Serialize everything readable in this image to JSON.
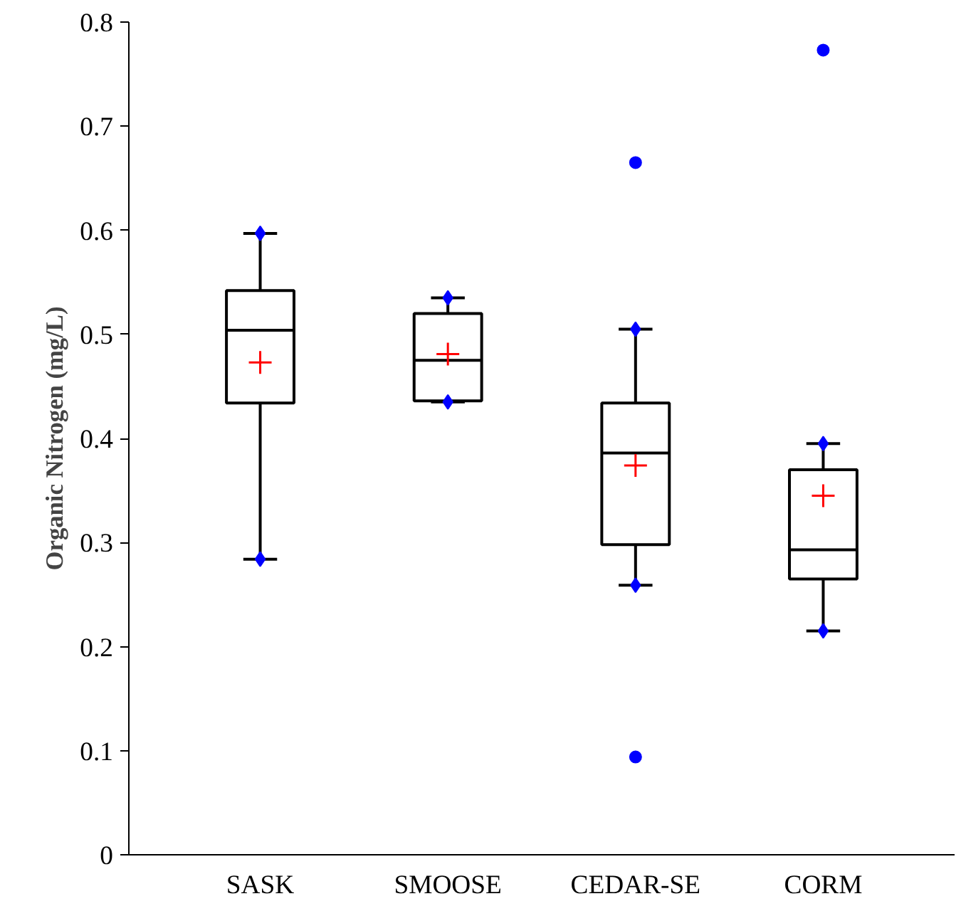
{
  "chart_data": {
    "type": "box",
    "ylabel": "Organic Nitrogen (mg/L)",
    "categories": [
      "SASK",
      "SMOOSE",
      "CEDAR-SE",
      "CORM"
    ],
    "boxes": [
      {
        "low": 0.284,
        "q1": 0.434,
        "median": 0.504,
        "q3": 0.542,
        "high": 0.597,
        "mean": 0.473
      },
      {
        "low": 0.435,
        "q1": 0.436,
        "median": 0.475,
        "q3": 0.52,
        "high": 0.535,
        "mean": 0.481
      },
      {
        "low": 0.259,
        "q1": 0.298,
        "median": 0.386,
        "q3": 0.434,
        "high": 0.505,
        "mean": 0.374,
        "outliers": [
          0.665,
          0.094
        ]
      },
      {
        "low": 0.215,
        "q1": 0.265,
        "median": 0.293,
        "q3": 0.37,
        "high": 0.395,
        "mean": 0.345,
        "outliers": [
          0.773
        ]
      }
    ],
    "series": [
      {
        "type": "scatter",
        "marker": "diamond",
        "color": "#0000ff",
        "x": [
          "SASK",
          "SASK",
          "SMOOSE",
          "SMOOSE",
          "CEDAR-SE",
          "CEDAR-SE",
          "CORM",
          "CORM"
        ],
        "values": [
          0.284,
          0.597,
          0.435,
          0.535,
          0.259,
          0.505,
          0.215,
          0.395
        ]
      }
    ],
    "ylim": [
      0,
      0.8
    ],
    "yticks": [
      0,
      0.1,
      0.2,
      0.3,
      0.4,
      0.5,
      0.6,
      0.7,
      0.8
    ],
    "grid": false
  }
}
